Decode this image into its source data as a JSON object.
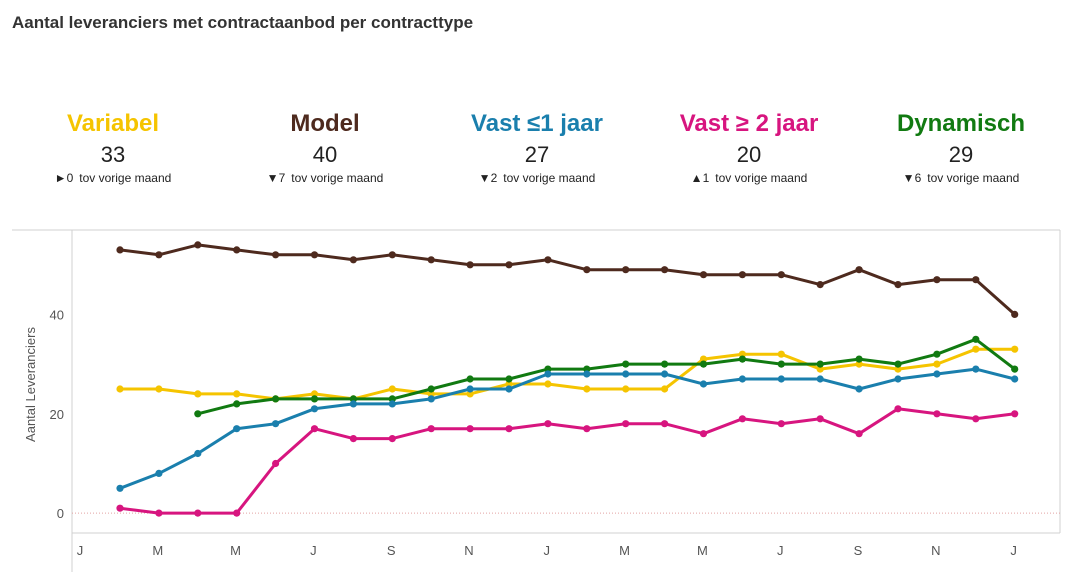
{
  "title": "Aantal leveranciers met contractaanbod per contracttype",
  "kpis": [
    {
      "label": "Variabel",
      "color": "#F5C400",
      "value": "33",
      "arrow": "►",
      "delta": "0",
      "delta_text": "tov vorige maand"
    },
    {
      "label": "Model",
      "color": "#4E2A1E",
      "value": "40",
      "arrow": "▼",
      "delta": "7",
      "delta_text": "tov vorige maand"
    },
    {
      "label": "Vast ≤1 jaar",
      "color": "#1A7FAD",
      "value": "27",
      "arrow": "▼",
      "delta": "2",
      "delta_text": "tov vorige maand"
    },
    {
      "label": "Vast ≥ 2 jaar",
      "color": "#D7157F",
      "value": "20",
      "arrow": "▲",
      "delta": "1",
      "delta_text": "tov vorige maand"
    },
    {
      "label": "Dynamisch",
      "color": "#117A11",
      "value": "29",
      "arrow": "▼",
      "delta": "6",
      "delta_text": "tov vorige maand"
    }
  ],
  "chart_data": {
    "type": "line",
    "ylabel": "Aantal Leveranciers",
    "xlabel": "",
    "ylim": [
      -4,
      57
    ],
    "yticks": [
      0,
      20,
      40
    ],
    "x_tick_labels": [
      "J",
      "M",
      "M",
      "J",
      "S",
      "N",
      "J",
      "M",
      "M",
      "J",
      "S",
      "N",
      "J"
    ],
    "grid": false,
    "zero_line": true,
    "series": [
      {
        "name": "Model",
        "color": "#4E2A1E",
        "values": [
          53,
          52,
          54,
          53,
          52,
          52,
          51,
          52,
          51,
          50,
          50,
          51,
          49,
          49,
          49,
          48,
          48,
          48,
          46,
          49,
          46,
          47,
          47,
          40
        ]
      },
      {
        "name": "Variabel",
        "color": "#F5C400",
        "values": [
          25,
          25,
          24,
          24,
          23,
          24,
          23,
          25,
          24,
          24,
          26,
          26,
          25,
          25,
          25,
          31,
          32,
          32,
          29,
          30,
          29,
          30,
          33,
          33
        ]
      },
      {
        "name": "Dynamisch",
        "color": "#117A11",
        "values": [
          null,
          null,
          20,
          22,
          23,
          23,
          23,
          23,
          25,
          27,
          27,
          29,
          29,
          30,
          30,
          30,
          31,
          30,
          30,
          31,
          30,
          32,
          35,
          29
        ]
      },
      {
        "name": "Vast ≤1 jaar",
        "color": "#1A7FAD",
        "values": [
          5,
          8,
          12,
          17,
          18,
          21,
          22,
          22,
          23,
          25,
          25,
          28,
          28,
          28,
          28,
          26,
          27,
          27,
          27,
          25,
          27,
          28,
          29,
          27
        ]
      },
      {
        "name": "Vast ≥ 2 jaar",
        "color": "#D7157F",
        "values": [
          1,
          0,
          0,
          0,
          10,
          17,
          15,
          15,
          17,
          17,
          17,
          18,
          17,
          18,
          18,
          16,
          19,
          18,
          19,
          16,
          21,
          20,
          19,
          20
        ]
      }
    ]
  }
}
